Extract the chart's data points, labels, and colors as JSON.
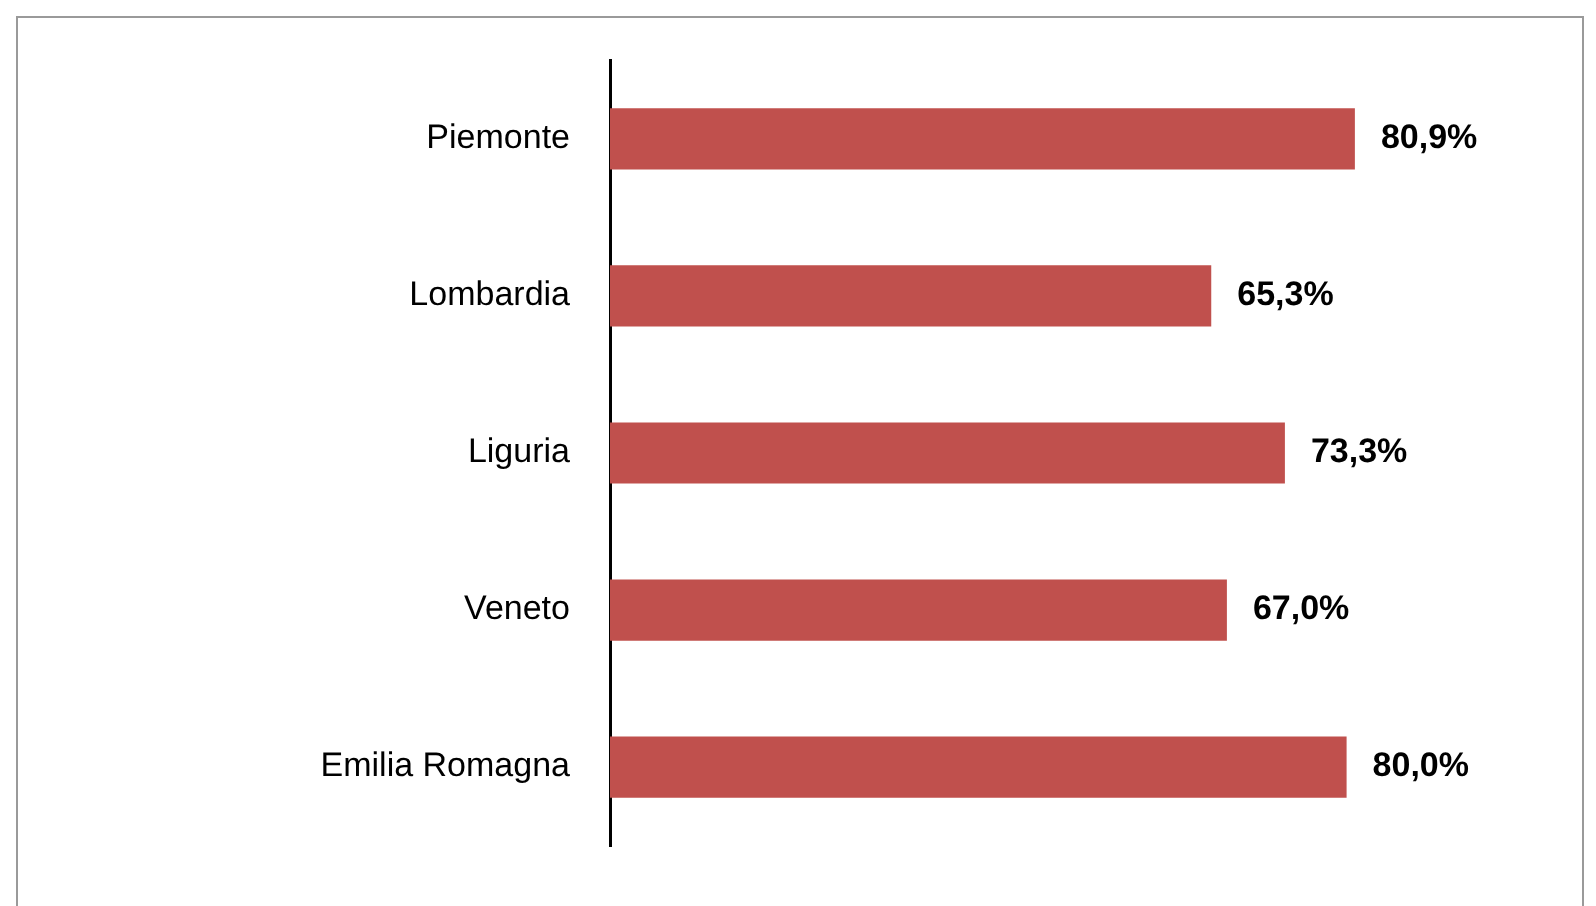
{
  "chart_data": {
    "type": "bar",
    "orientation": "horizontal",
    "categories": [
      "Piemonte",
      "Lombardia",
      "Liguria",
      "Veneto",
      "Emilia Romagna"
    ],
    "values": [
      80.9,
      65.3,
      73.3,
      67.0,
      80.0
    ],
    "value_labels": [
      "80,9%",
      "65,3%",
      "73,3%",
      "67,0%",
      "80,0%"
    ],
    "color": "#c0504d",
    "grid": false,
    "legend": false
  }
}
